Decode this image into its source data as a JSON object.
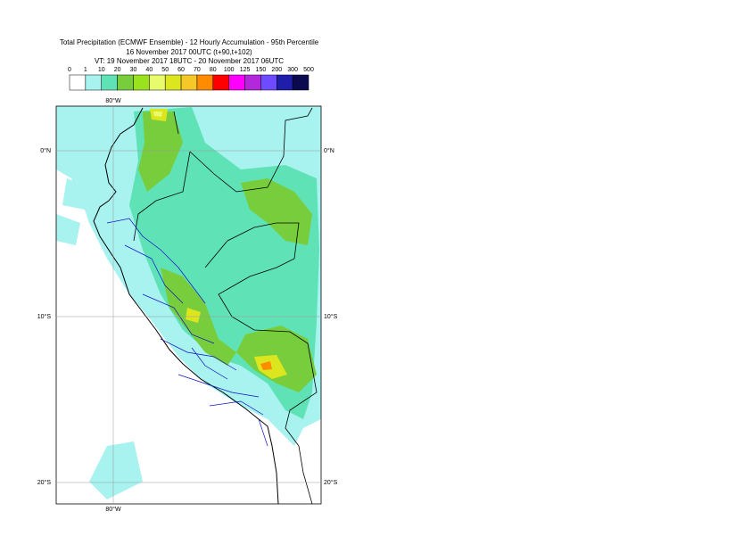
{
  "title": {
    "line1": "Total Precipitation (ECMWF Ensemble) - 12 Hourly Accumulation - 95th Percentile",
    "line2": "16 November 2017 00UTC (t+90,t+102)",
    "line3": "VT: 19 November 2017 18UTC - 20 November 2017 06UTC"
  },
  "legend": {
    "levels": [
      0,
      1,
      10,
      20,
      30,
      40,
      50,
      60,
      70,
      80,
      100,
      125,
      150,
      200,
      300,
      500
    ],
    "colors": [
      "#ffffff",
      "#a8f2f0",
      "#5fe3b6",
      "#78cd3c",
      "#9be21e",
      "#e8fa6e",
      "#dce61e",
      "#f5c828",
      "#ff8c00",
      "#ff0000",
      "#ff00ff",
      "#b428dc",
      "#6e4bff",
      "#1e1eaa",
      "#0a0a50"
    ]
  },
  "map": {
    "lon_labels": [
      "80°W"
    ],
    "lat_labels": [
      "0°N",
      "10°S",
      "20°S"
    ]
  }
}
